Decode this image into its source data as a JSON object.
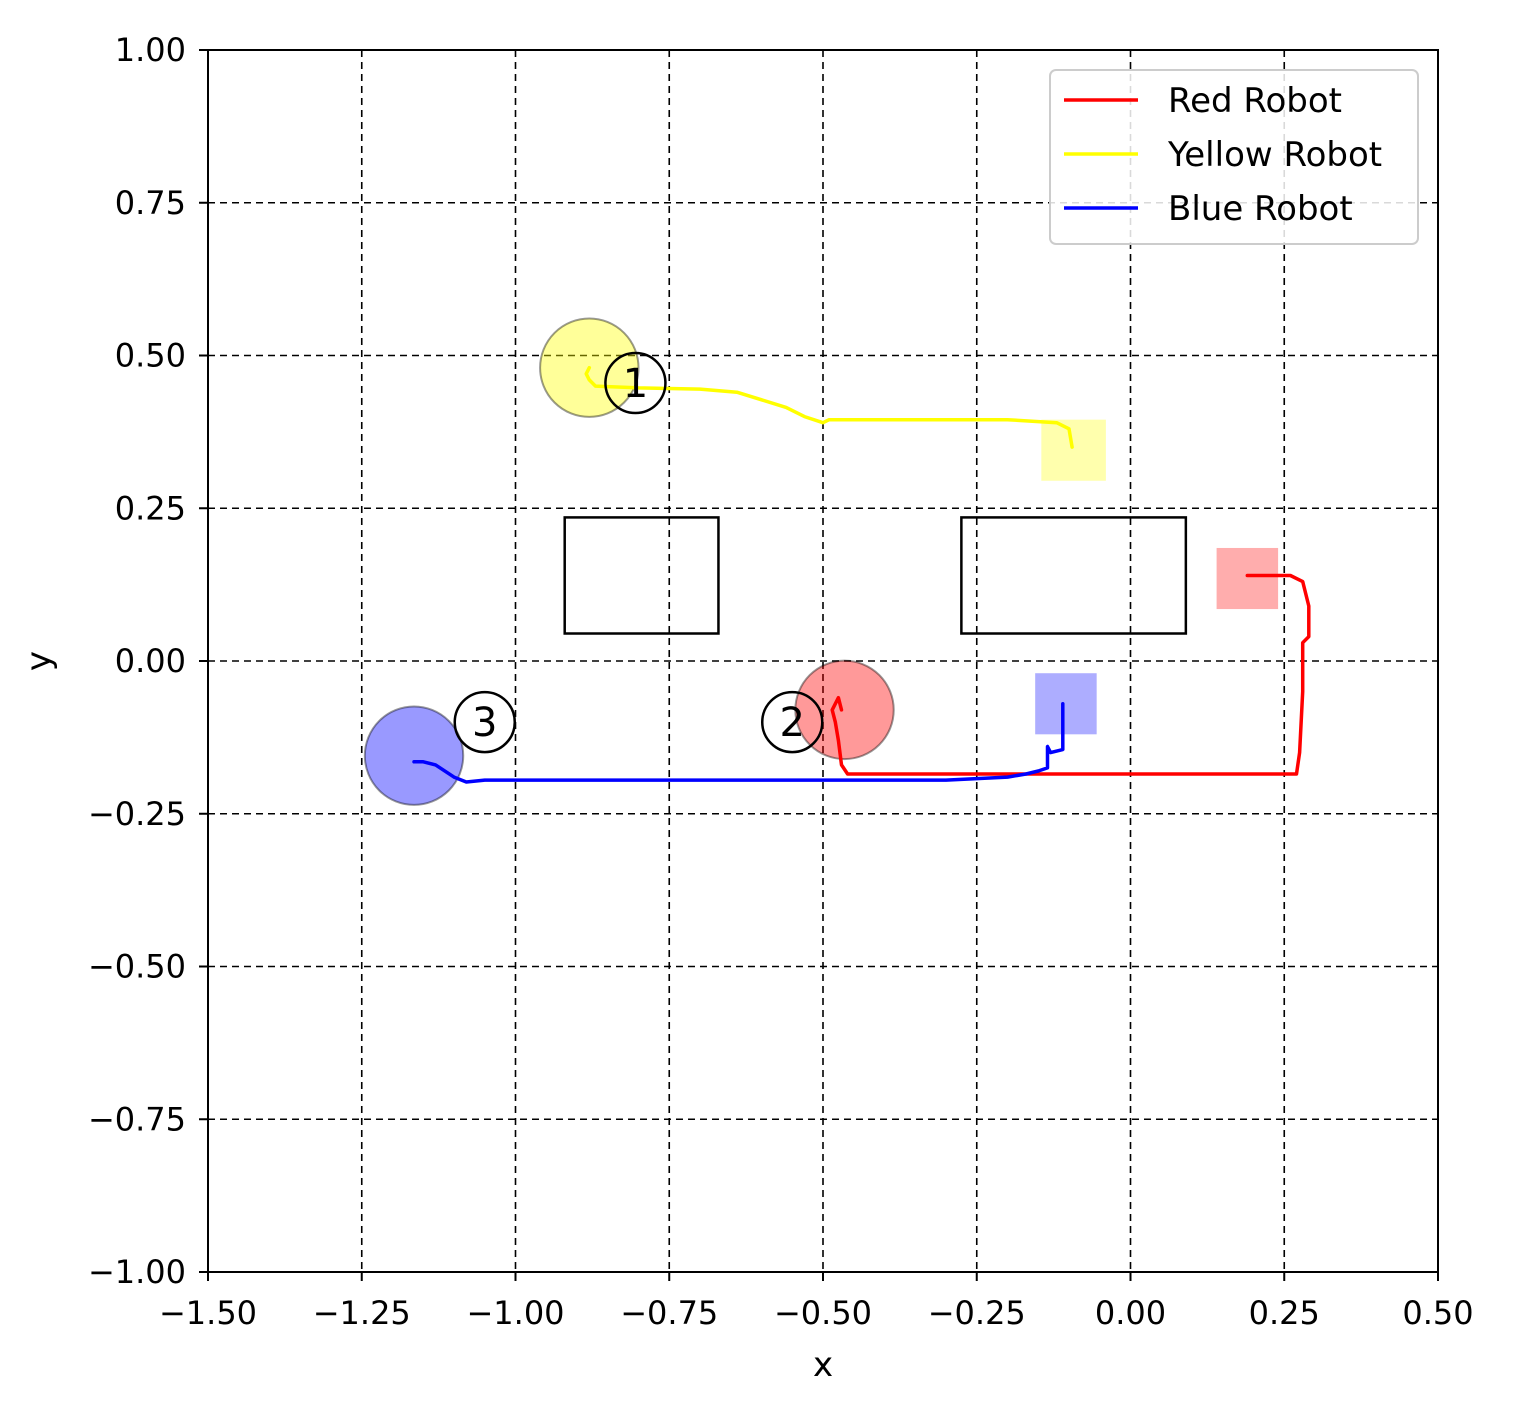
{
  "chart_data": {
    "type": "line",
    "title": "",
    "xlabel": "x",
    "ylabel": "y",
    "xlim": [
      -1.5,
      0.5
    ],
    "ylim": [
      -1.0,
      1.0
    ],
    "xticks": [
      -1.5,
      -1.25,
      -1.0,
      -0.75,
      -0.5,
      -0.25,
      0.0,
      0.25,
      0.5
    ],
    "xtick_labels": [
      "−1.50",
      "−1.25",
      "−1.00",
      "−0.75",
      "−0.50",
      "−0.25",
      "0.00",
      "0.25",
      "0.50"
    ],
    "yticks": [
      1.0,
      0.75,
      0.5,
      0.25,
      0.0,
      -0.25,
      -0.5,
      -0.75,
      -1.0
    ],
    "ytick_labels": [
      "1.00",
      "0.75",
      "0.50",
      "0.25",
      "0.00",
      "−0.25",
      "−0.50",
      "−0.75",
      "−1.00"
    ],
    "grid": true,
    "legend_position": "top-right",
    "series": [
      {
        "name": "Red Robot",
        "color": "#ff0000",
        "x": [
          0.19,
          0.26,
          0.28,
          0.29,
          0.29,
          0.28,
          0.28,
          0.275,
          0.27,
          0.2,
          0.0,
          -0.2,
          -0.4,
          -0.46,
          -0.47,
          -0.475,
          -0.48,
          -0.485,
          -0.48,
          -0.475,
          -0.47
        ],
        "y": [
          0.14,
          0.14,
          0.13,
          0.09,
          0.04,
          0.03,
          -0.05,
          -0.15,
          -0.185,
          -0.185,
          -0.185,
          -0.185,
          -0.185,
          -0.185,
          -0.17,
          -0.13,
          -0.1,
          -0.08,
          -0.07,
          -0.06,
          -0.08
        ]
      },
      {
        "name": "Yellow Robot",
        "color": "#ffff00",
        "x": [
          -0.095,
          -0.1,
          -0.12,
          -0.2,
          -0.3,
          -0.4,
          -0.49,
          -0.5,
          -0.53,
          -0.56,
          -0.64,
          -0.7,
          -0.8,
          -0.87,
          -0.88,
          -0.885,
          -0.88
        ],
        "y": [
          0.35,
          0.38,
          0.39,
          0.395,
          0.395,
          0.395,
          0.395,
          0.39,
          0.4,
          0.415,
          0.44,
          0.445,
          0.447,
          0.45,
          0.46,
          0.47,
          0.48
        ]
      },
      {
        "name": "Blue Robot",
        "color": "#0000ff",
        "x": [
          -0.11,
          -0.11,
          -0.13,
          -0.135,
          -0.135,
          -0.15,
          -0.17,
          -0.2,
          -0.3,
          -0.5,
          -0.7,
          -0.9,
          -1.0,
          -1.05,
          -1.08,
          -1.1,
          -1.13,
          -1.15,
          -1.165
        ],
        "y": [
          -0.07,
          -0.145,
          -0.15,
          -0.14,
          -0.175,
          -0.18,
          -0.185,
          -0.19,
          -0.195,
          -0.195,
          -0.195,
          -0.195,
          -0.195,
          -0.195,
          -0.198,
          -0.19,
          -0.17,
          -0.165,
          -0.165
        ]
      }
    ],
    "robots": [
      {
        "id": "robot-1",
        "label": "1",
        "color": "#ffff00",
        "body_x": -0.88,
        "body_y": 0.48,
        "badge_x": -0.805,
        "badge_y": 0.455
      },
      {
        "id": "robot-2",
        "label": "2",
        "color": "#ff0000",
        "body_x": -0.465,
        "body_y": -0.08,
        "badge_x": -0.55,
        "badge_y": -0.1
      },
      {
        "id": "robot-3",
        "label": "3",
        "color": "#0000ff",
        "body_x": -1.165,
        "body_y": -0.155,
        "badge_x": -1.05,
        "badge_y": -0.1
      }
    ],
    "goals": [
      {
        "id": "goal-yellow",
        "color": "#ffff00",
        "x0": -0.145,
        "x1": -0.04,
        "y0": 0.295,
        "y1": 0.395
      },
      {
        "id": "goal-red",
        "color": "#ff0000",
        "x0": 0.14,
        "x1": 0.24,
        "y0": 0.085,
        "y1": 0.185
      },
      {
        "id": "goal-blue",
        "color": "#0000ff",
        "x0": -0.155,
        "x1": -0.055,
        "y0": -0.12,
        "y1": -0.02
      }
    ],
    "obstacles": [
      {
        "id": "obstacle-left",
        "x0": -0.92,
        "x1": -0.67,
        "y0": 0.045,
        "y1": 0.235
      },
      {
        "id": "obstacle-right",
        "x0": -0.275,
        "x1": 0.09,
        "y0": 0.045,
        "y1": 0.235
      }
    ],
    "robot_radius": 0.08
  }
}
